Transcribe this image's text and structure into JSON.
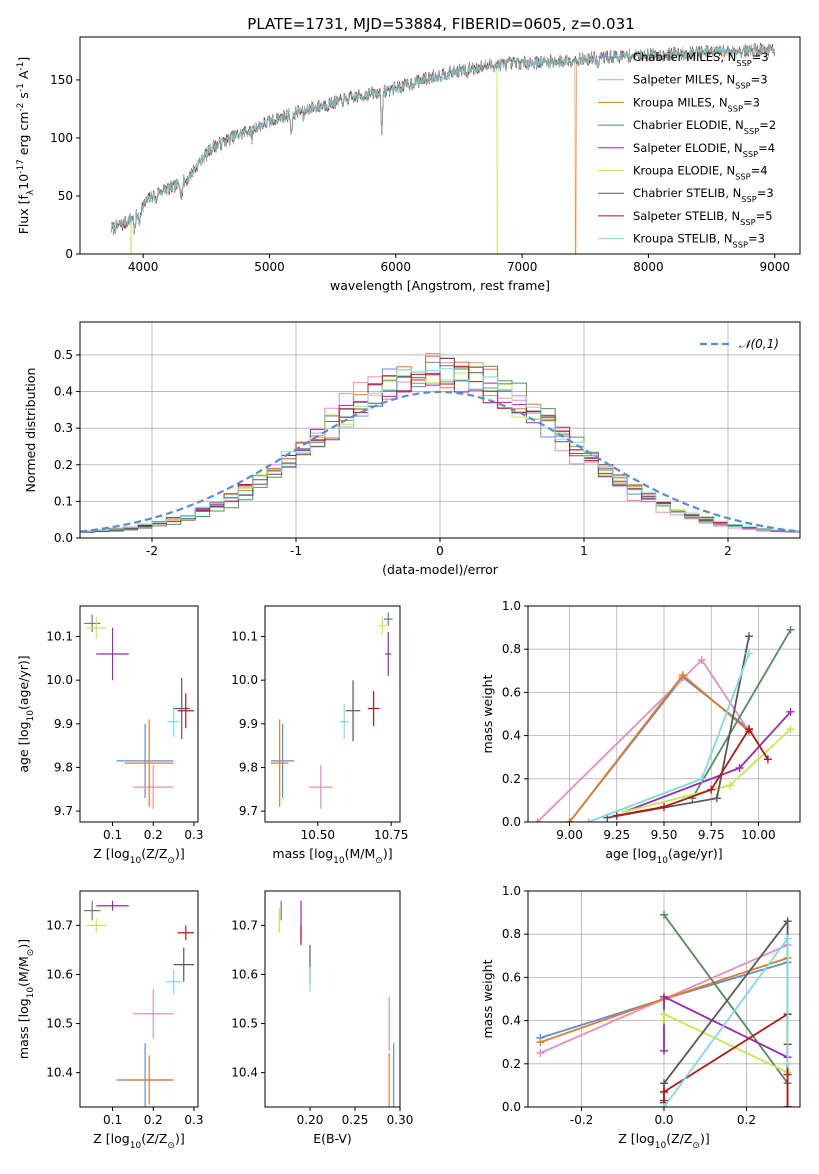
{
  "page": {
    "title": "PLATE=1731, MJD=53884, FIBERID=0605, z=0.031"
  },
  "colors": {
    "chabrier_miles": "#5f8fd7",
    "salpeter_miles": "#e58ec0",
    "kroupa_miles": "#e07d24",
    "chabrier_elodie": "#5a8b5f",
    "salpeter_elodie": "#9b27b0",
    "kroupa_elodie": "#c7e84f",
    "chabrier_stelib": "#595959",
    "salpeter_stelib": "#b11a1a",
    "kroupa_stelib": "#7fdbe0",
    "normal": "#5b8bd6"
  },
  "chart_data": [
    {
      "id": "spectrum",
      "type": "line",
      "title": "PLATE=1731, MJD=53884, FIBERID=0605, z=0.031",
      "xlabel": "wavelength [Angstrom, rest frame]",
      "ylabel": "Flux [f$_\\lambda$10$^{-17}$ erg cm$^{-2}$ s$^{-1}$ A$^{-1}$]",
      "xlim": [
        3500,
        9200
      ],
      "ylim": [
        0,
        187
      ],
      "xticks": [
        4000,
        5000,
        6000,
        7000,
        8000,
        9000
      ],
      "yticks": [
        0,
        50,
        100,
        150
      ],
      "grid": false,
      "legend_position": "upper-right",
      "series": [
        {
          "name": "Chabrier MILES, N$_{SSP}$=3",
          "key": "chabrier_miles"
        },
        {
          "name": "Salpeter MILES, N$_{SSP}$=3",
          "key": "salpeter_miles"
        },
        {
          "name": "Kroupa MILES, N$_{SSP}$=3",
          "key": "kroupa_miles"
        },
        {
          "name": "Chabrier ELODIE, N$_{SSP}$=2",
          "key": "chabrier_elodie"
        },
        {
          "name": "Salpeter ELODIE, N$_{SSP}$=4",
          "key": "salpeter_elodie"
        },
        {
          "name": "Kroupa ELODIE, N$_{SSP}$=4",
          "key": "kroupa_elodie"
        },
        {
          "name": "Chabrier STELIB, N$_{SSP}$=3",
          "key": "chabrier_stelib"
        },
        {
          "name": "Salpeter STELIB, N$_{SSP}$=5",
          "key": "salpeter_stelib"
        },
        {
          "name": "Kroupa STELIB, N$_{SSP}$=3",
          "key": "kroupa_stelib"
        }
      ],
      "continuum": {
        "x": [
          3750,
          3850,
          3950,
          4050,
          4150,
          4250,
          4350,
          4450,
          4550,
          4700,
          4900,
          5100,
          5300,
          5500,
          5700,
          5900,
          6100,
          6300,
          6500,
          6700,
          6900,
          7100,
          7300,
          7500,
          7700,
          7900,
          8100,
          8300,
          8500,
          8700,
          8900,
          9000
        ],
        "y": [
          22,
          26,
          35,
          48,
          55,
          58,
          64,
          80,
          92,
          100,
          110,
          118,
          125,
          130,
          136,
          140,
          146,
          153,
          158,
          162,
          164,
          165,
          166,
          168,
          170,
          171,
          172,
          173,
          174,
          175,
          176,
          176
        ]
      },
      "dropouts": [
        {
          "key": "kroupa_elodie",
          "x": 3900
        },
        {
          "key": "kroupa_elodie",
          "x": 6800
        },
        {
          "key": "kroupa_miles",
          "x": 7420
        }
      ]
    },
    {
      "id": "residuals",
      "type": "line",
      "xlabel": "(data-model)/error",
      "ylabel": "Normed distribution",
      "xlim": [
        -2.5,
        2.5
      ],
      "ylim": [
        0,
        0.59
      ],
      "xticks": [
        -2,
        -1,
        0,
        1,
        2
      ],
      "yticks": [
        0.0,
        0.1,
        0.2,
        0.3,
        0.4,
        0.5
      ],
      "grid": true,
      "legend_position": "upper-right",
      "legend": "$\\mathcal{N}(0,1)$",
      "reference": {
        "mu": 0,
        "sigma": 1,
        "name": "N(0,1)"
      },
      "histogram_bins": 50,
      "histograms": [
        {
          "key": "chabrier_miles",
          "mean": 0.0,
          "sigma": 0.82
        },
        {
          "key": "salpeter_miles",
          "mean": -0.05,
          "sigma": 0.8
        },
        {
          "key": "kroupa_miles",
          "mean": 0.0,
          "sigma": 0.83
        },
        {
          "key": "chabrier_elodie",
          "mean": 0.05,
          "sigma": 0.8
        },
        {
          "key": "salpeter_elodie",
          "mean": 0.0,
          "sigma": 0.84
        },
        {
          "key": "kroupa_elodie",
          "mean": 0.0,
          "sigma": 0.85
        },
        {
          "key": "chabrier_stelib",
          "mean": 0.02,
          "sigma": 0.82
        },
        {
          "key": "salpeter_stelib",
          "mean": 0.0,
          "sigma": 0.85
        },
        {
          "key": "kroupa_stelib",
          "mean": 0.0,
          "sigma": 0.85
        }
      ]
    },
    {
      "id": "age_vs_Z",
      "type": "scatter",
      "xlabel": "Z [log$_{10}$(Z/Z$_\\odot$)]",
      "ylabel": "age  [log$_{10}$(age/yr)]",
      "xlim": [
        0.02,
        0.31
      ],
      "ylim": [
        9.675,
        10.17
      ],
      "xticks": [
        0.1,
        0.2,
        0.3
      ],
      "yticks": [
        9.7,
        9.8,
        9.9,
        10.0,
        10.1
      ],
      "points": [
        {
          "key": "chabrier_miles",
          "x": 0.18,
          "y": 9.815,
          "xerr": 0.07,
          "yerr": 0.085
        },
        {
          "key": "salpeter_miles",
          "x": 0.2,
          "y": 9.755,
          "xerr": 0.05,
          "yerr": 0.05
        },
        {
          "key": "kroupa_miles",
          "x": 0.19,
          "y": 9.81,
          "xerr": 0.06,
          "yerr": 0.1
        },
        {
          "key": "chabrier_elodie",
          "x": 0.05,
          "y": 10.13,
          "xerr": 0.02,
          "yerr": 0.02
        },
        {
          "key": "salpeter_elodie",
          "x": 0.1,
          "y": 10.06,
          "xerr": 0.04,
          "yerr": 0.06
        },
        {
          "key": "kroupa_elodie",
          "x": 0.06,
          "y": 10.12,
          "xerr": 0.025,
          "yerr": 0.025
        },
        {
          "key": "chabrier_stelib",
          "x": 0.27,
          "y": 9.935,
          "xerr": 0.02,
          "yerr": 0.07
        },
        {
          "key": "salpeter_stelib",
          "x": 0.28,
          "y": 9.93,
          "xerr": 0.02,
          "yerr": 0.04
        },
        {
          "key": "kroupa_stelib",
          "x": 0.25,
          "y": 9.905,
          "xerr": 0.015,
          "yerr": 0.035
        }
      ]
    },
    {
      "id": "age_vs_mass",
      "type": "scatter",
      "xlabel": "mass [log$_{10}$(M/M$_\\odot$)]",
      "ylabel": "",
      "xlim": [
        10.32,
        10.78
      ],
      "ylim": [
        9.675,
        10.17
      ],
      "xticks": [
        10.5,
        10.75
      ],
      "yticks": [
        9.7,
        9.8,
        9.9,
        10.0,
        10.1
      ],
      "points": [
        {
          "key": "chabrier_miles",
          "x": 10.38,
          "y": 9.815,
          "xerr": 0.04,
          "yerr": 0.085
        },
        {
          "key": "salpeter_miles",
          "x": 10.51,
          "y": 9.755,
          "xerr": 0.04,
          "yerr": 0.05
        },
        {
          "key": "kroupa_miles",
          "x": 10.37,
          "y": 9.81,
          "xerr": 0.03,
          "yerr": 0.1
        },
        {
          "key": "chabrier_elodie",
          "x": 10.74,
          "y": 10.14,
          "xerr": 0.015,
          "yerr": 0.015
        },
        {
          "key": "salpeter_elodie",
          "x": 10.74,
          "y": 10.06,
          "xerr": 0.01,
          "yerr": 0.05
        },
        {
          "key": "kroupa_elodie",
          "x": 10.72,
          "y": 10.125,
          "xerr": 0.015,
          "yerr": 0.02
        },
        {
          "key": "chabrier_stelib",
          "x": 10.62,
          "y": 9.93,
          "xerr": 0.025,
          "yerr": 0.07
        },
        {
          "key": "salpeter_stelib",
          "x": 10.69,
          "y": 9.935,
          "xerr": 0.02,
          "yerr": 0.04
        },
        {
          "key": "kroupa_stelib",
          "x": 10.59,
          "y": 9.905,
          "xerr": 0.015,
          "yerr": 0.04
        }
      ]
    },
    {
      "id": "massweight_vs_age",
      "type": "line",
      "xlabel": "age  [log$_{10}$(age/yr)]",
      "ylabel": "mass weight",
      "xlim": [
        8.78,
        10.22
      ],
      "ylim": [
        0,
        1
      ],
      "xticks": [
        9.0,
        9.25,
        9.5,
        9.75,
        10.0
      ],
      "yticks": [
        0.0,
        0.2,
        0.4,
        0.6,
        0.8,
        1.0
      ],
      "grid": true,
      "series": [
        {
          "key": "chabrier_miles",
          "x": [
            9.0,
            9.6,
            9.95
          ],
          "y": [
            0.0,
            0.67,
            0.43
          ]
        },
        {
          "key": "salpeter_miles",
          "x": [
            8.83,
            9.7,
            9.95
          ],
          "y": [
            0.0,
            0.75,
            0.42
          ]
        },
        {
          "key": "kroupa_miles",
          "x": [
            9.0,
            9.6,
            9.95
          ],
          "y": [
            0.0,
            0.68,
            0.42
          ]
        },
        {
          "key": "chabrier_elodie",
          "x": [
            9.65,
            10.17
          ],
          "y": [
            0.11,
            0.89
          ]
        },
        {
          "key": "salpeter_elodie",
          "x": [
            9.3,
            9.9,
            10.17
          ],
          "y": [
            0.05,
            0.25,
            0.51
          ]
        },
        {
          "key": "kroupa_elodie",
          "x": [
            9.3,
            9.85,
            10.17
          ],
          "y": [
            0.05,
            0.17,
            0.43
          ]
        },
        {
          "key": "chabrier_stelib",
          "x": [
            9.2,
            9.78,
            9.95
          ],
          "y": [
            0.02,
            0.11,
            0.86
          ]
        },
        {
          "key": "salpeter_stelib",
          "x": [
            9.25,
            9.5,
            9.75,
            9.95,
            10.05
          ],
          "y": [
            0.03,
            0.07,
            0.15,
            0.43,
            0.29
          ]
        },
        {
          "key": "kroupa_stelib",
          "x": [
            9.1,
            9.7,
            9.95
          ],
          "y": [
            0.0,
            0.2,
            0.78
          ]
        }
      ]
    },
    {
      "id": "mass_vs_Z",
      "type": "scatter",
      "xlabel": "Z [log$_{10}$(Z/Z$_\\odot$)]",
      "ylabel": "mass [log$_{10}$(M/M$_\\odot$)]",
      "xlim": [
        0.02,
        0.31
      ],
      "ylim": [
        10.33,
        10.77
      ],
      "xticks": [
        0.1,
        0.2,
        0.3
      ],
      "yticks": [
        10.4,
        10.5,
        10.6,
        10.7
      ],
      "points": [
        {
          "key": "chabrier_miles",
          "x": 0.18,
          "y": 10.385,
          "xerr": 0.07,
          "yerr": 0.075
        },
        {
          "key": "salpeter_miles",
          "x": 0.2,
          "y": 10.52,
          "xerr": 0.05,
          "yerr": 0.05
        },
        {
          "key": "kroupa_miles",
          "x": 0.19,
          "y": 10.385,
          "xerr": 0.06,
          "yerr": 0.05
        },
        {
          "key": "chabrier_elodie",
          "x": 0.05,
          "y": 10.73,
          "xerr": 0.02,
          "yerr": 0.02
        },
        {
          "key": "salpeter_elodie",
          "x": 0.1,
          "y": 10.74,
          "xerr": 0.04,
          "yerr": 0.01
        },
        {
          "key": "kroupa_elodie",
          "x": 0.06,
          "y": 10.7,
          "xerr": 0.025,
          "yerr": 0.015
        },
        {
          "key": "chabrier_stelib",
          "x": 0.275,
          "y": 10.62,
          "xerr": 0.025,
          "yerr": 0.035
        },
        {
          "key": "salpeter_stelib",
          "x": 0.28,
          "y": 10.685,
          "xerr": 0.02,
          "yerr": 0.015
        },
        {
          "key": "kroupa_stelib",
          "x": 0.25,
          "y": 10.585,
          "xerr": 0.02,
          "yerr": 0.025
        }
      ]
    },
    {
      "id": "mass_vs_EBV",
      "type": "scatter",
      "xlabel": "E(B-V)",
      "ylabel": "",
      "xlim": [
        0.15,
        0.3
      ],
      "ylim": [
        10.33,
        10.77
      ],
      "xticks": [
        0.2,
        0.25,
        0.3
      ],
      "yticks": [
        10.4,
        10.5,
        10.6,
        10.7
      ],
      "points": [
        {
          "key": "chabrier_miles",
          "x": 0.293,
          "y": 10.385,
          "xerr": 0.0,
          "yerr": 0.075
        },
        {
          "key": "salpeter_miles",
          "x": 0.288,
          "y": 10.5,
          "xerr": 0.0,
          "yerr": 0.055
        },
        {
          "key": "kroupa_miles",
          "x": 0.288,
          "y": 10.38,
          "xerr": 0.0,
          "yerr": 0.06
        },
        {
          "key": "chabrier_elodie",
          "x": 0.168,
          "y": 10.73,
          "xerr": 0.0,
          "yerr": 0.02
        },
        {
          "key": "salpeter_elodie",
          "x": 0.19,
          "y": 10.71,
          "xerr": 0.0,
          "yerr": 0.04
        },
        {
          "key": "kroupa_elodie",
          "x": 0.166,
          "y": 10.71,
          "xerr": 0.0,
          "yerr": 0.025
        },
        {
          "key": "chabrier_stelib",
          "x": 0.2,
          "y": 10.62,
          "xerr": 0.0,
          "yerr": 0.04
        },
        {
          "key": "salpeter_stelib",
          "x": 0.19,
          "y": 10.68,
          "xerr": 0.0,
          "yerr": 0.02
        },
        {
          "key": "kroupa_stelib",
          "x": 0.2,
          "y": 10.59,
          "xerr": 0.0,
          "yerr": 0.025
        }
      ]
    },
    {
      "id": "massweight_vs_Z",
      "type": "line",
      "xlabel": "Z [log$_{10}$(Z/Z$_\\odot$)]",
      "ylabel": "mass weight",
      "xlim": [
        -0.33,
        0.33
      ],
      "ylim": [
        0,
        1
      ],
      "xticks": [
        -0.2,
        0.0,
        0.2
      ],
      "yticks": [
        0.0,
        0.2,
        0.4,
        0.6,
        0.8,
        1.0
      ],
      "grid": true,
      "series": [
        {
          "key": "chabrier_miles",
          "x": [
            -0.3,
            0.0,
            0.3
          ],
          "y": [
            0.32,
            0.5,
            0.67
          ]
        },
        {
          "key": "salpeter_miles",
          "x": [
            -0.3,
            0.0,
            0.3
          ],
          "y": [
            0.25,
            0.5,
            0.75
          ]
        },
        {
          "key": "kroupa_miles",
          "x": [
            -0.3,
            0.0,
            0.3
          ],
          "y": [
            0.3,
            0.5,
            0.69
          ]
        },
        {
          "key": "chabrier_elodie",
          "x": [
            0.0,
            0.3
          ],
          "y": [
            0.89,
            0.11
          ]
        },
        {
          "key": "salpeter_elodie",
          "x": [
            0.0,
            0.0,
            0.3,
            0.3
          ],
          "y": [
            0.26,
            0.51,
            0.23,
            0.0
          ]
        },
        {
          "key": "kroupa_elodie",
          "x": [
            0.0,
            0.0,
            0.3,
            0.3
          ],
          "y": [
            0.4,
            0.43,
            0.16,
            0.0
          ]
        },
        {
          "key": "chabrier_stelib",
          "x": [
            0.0,
            0.0,
            0.3,
            0.3
          ],
          "y": [
            0.02,
            0.11,
            0.86,
            0.0
          ]
        },
        {
          "key": "salpeter_stelib",
          "x": [
            0.0,
            0.0,
            0.3,
            0.3,
            0.3,
            0.3
          ],
          "y": [
            0.03,
            0.07,
            0.43,
            0.29,
            0.15,
            0.0
          ]
        },
        {
          "key": "kroupa_stelib",
          "x": [
            0.0,
            0.3,
            0.3
          ],
          "y": [
            0.0,
            0.78,
            0.2
          ]
        }
      ]
    }
  ]
}
